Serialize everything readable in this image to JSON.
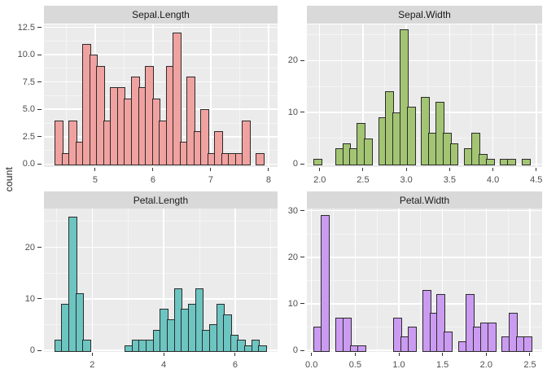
{
  "figure": {
    "y_axis_title": "count",
    "background": "#FFFFFF"
  },
  "theme": {
    "panel_bg": "#EBEBEB",
    "strip_bg": "#D9D9D9",
    "strip_text_color": "#1A1A1A",
    "grid_major": "#FFFFFF",
    "grid_minor": "#F5F5F5",
    "axis_text_color": "#4D4D4D",
    "tick_mark_color": "#333333",
    "bar_border": "#2B2B2B"
  },
  "chart_data": {
    "type": "bar",
    "subtype": "faceted-histogram",
    "ylabel": "count",
    "xlabel": "",
    "legend": "none",
    "facets": [
      {
        "title": "Sepal.Length",
        "fill": "#F0A2A0",
        "bin_start": 4.3,
        "bin_width": 0.12,
        "counts": [
          4,
          1,
          4,
          2,
          11,
          10,
          9,
          4,
          7,
          7,
          6,
          8,
          7,
          9,
          6,
          4,
          9,
          12,
          2,
          8,
          3,
          5,
          1,
          3,
          1,
          1,
          1,
          4,
          0,
          1
        ],
        "x_tick_values": [
          5,
          6,
          7,
          8
        ],
        "x_tick_labels": [
          "5",
          "6",
          "7",
          "8"
        ],
        "x_minor": [
          4.5,
          5.5,
          6.5,
          7.5
        ],
        "y_tick_values": [
          0,
          2.5,
          5,
          7.5,
          10,
          12.5
        ],
        "y_tick_labels": [
          "0.0",
          "2.5",
          "5.0",
          "7.5",
          "10.0",
          "12.5"
        ],
        "y_minor": [
          1.25,
          3.75,
          6.25,
          8.75,
          11.25
        ],
        "x_domain": [
          4.113,
          8.155
        ],
        "y_domain": [
          -0.276,
          12.81
        ]
      },
      {
        "title": "Sepal.Width",
        "fill": "#A3C573",
        "bin_start": 1.93,
        "bin_width": 0.0828,
        "counts": [
          1,
          0,
          0,
          3,
          4,
          3,
          8,
          5,
          0,
          9,
          14,
          10,
          26,
          11,
          0,
          13,
          6,
          12,
          6,
          4,
          0,
          3,
          6,
          2,
          1,
          0,
          1,
          1,
          0,
          1
        ],
        "x_tick_values": [
          2.0,
          2.5,
          3.0,
          3.5,
          4.0,
          4.5
        ],
        "x_tick_labels": [
          "2.0",
          "2.5",
          "3.0",
          "3.5",
          "4.0",
          "4.5"
        ],
        "x_minor": [
          2.25,
          2.75,
          3.25,
          3.75,
          4.25
        ],
        "y_tick_values": [
          0,
          10,
          20
        ],
        "y_tick_labels": [
          "0",
          "10",
          "20"
        ],
        "y_minor": [
          5,
          15,
          25
        ],
        "x_domain": [
          1.852,
          4.568
        ],
        "y_domain": [
          -0.583,
          27.06
        ]
      },
      {
        "title": "Petal.Length",
        "fill": "#6CC5C1",
        "bin_start": 0.936,
        "bin_width": 0.197,
        "counts": [
          2,
          9,
          26,
          11,
          2,
          0,
          0,
          0,
          0,
          0,
          1,
          2,
          2,
          2,
          4,
          8,
          6,
          12,
          8,
          9,
          12,
          4,
          5,
          9,
          7,
          3,
          2,
          1,
          2,
          1
        ],
        "x_tick_values": [
          2,
          4,
          6
        ],
        "x_tick_labels": [
          "2",
          "4",
          "6"
        ],
        "x_minor": [
          1,
          3,
          5,
          7
        ],
        "y_tick_values": [
          0,
          10,
          20
        ],
        "y_tick_labels": [
          "0",
          "10",
          "20"
        ],
        "y_minor": [
          5,
          15,
          25
        ],
        "x_domain": [
          0.649,
          7.186
        ],
        "y_domain": [
          -0.316,
          27.53
        ]
      },
      {
        "title": "Petal.Width",
        "fill": "#CB9BF2",
        "bin_start": 0.025,
        "bin_width": 0.0828,
        "counts": [
          5,
          29,
          0,
          7,
          7,
          1,
          1,
          0,
          0,
          0,
          0,
          7,
          3,
          5,
          0,
          13,
          8,
          12,
          4,
          0,
          2,
          12,
          5,
          6,
          6,
          0,
          3,
          8,
          3,
          3
        ],
        "x_tick_values": [
          0.0,
          0.5,
          1.0,
          1.5,
          2.0,
          2.5
        ],
        "x_tick_labels": [
          "0.0",
          "0.5",
          "1.0",
          "1.5",
          "2.0",
          "2.5"
        ],
        "x_minor": [
          0.25,
          0.75,
          1.25,
          1.75,
          2.25
        ],
        "y_tick_values": [
          0,
          10,
          20,
          30
        ],
        "y_tick_labels": [
          "0",
          "10",
          "20",
          "30"
        ],
        "y_minor": [
          5,
          15,
          25
        ],
        "x_domain": [
          -0.053,
          2.64
        ],
        "y_domain": [
          -0.35,
          30.47
        ]
      }
    ]
  }
}
